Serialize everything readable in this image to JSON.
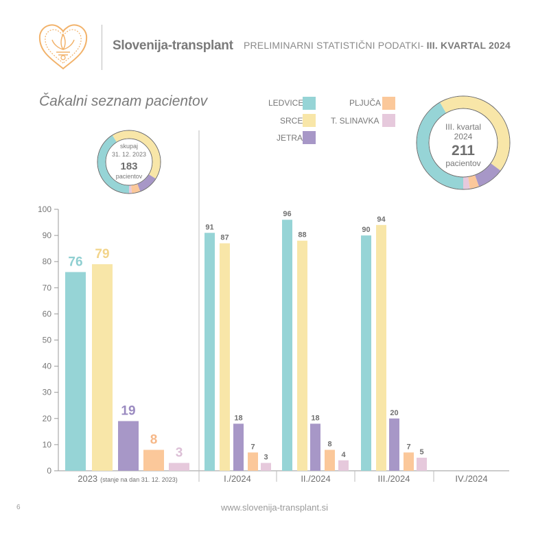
{
  "header": {
    "org_name": "Slovenija-transplant",
    "title_prefix": "PRELIMINARNI STATISTIČNI PODATKI- ",
    "title_highlight": "III. KVARTAL 2024"
  },
  "subtitle": "Čakalni seznam pacientov",
  "legend": [
    {
      "label": "LEDVICE",
      "color": "#96d4d6"
    },
    {
      "label": "SRCE",
      "color": "#f8e6a8"
    },
    {
      "label": "JETRA",
      "color": "#a797c7"
    },
    {
      "label": "PLJUČA",
      "color": "#fbc89a"
    },
    {
      "label": "T. SLINAVKA",
      "color": "#e6c9dc"
    }
  ],
  "donut_2023": {
    "line1": "skupaj",
    "line2": "31. 12. 2023",
    "total": "183",
    "unit": "pacientov",
    "values": [
      76,
      79,
      19,
      8,
      3
    ]
  },
  "donut_q3": {
    "line1": "III. kvartal",
    "line2": "2024",
    "total": "211",
    "unit": "pacientov",
    "values": [
      90,
      94,
      20,
      7,
      5
    ]
  },
  "chart_data": {
    "type": "bar",
    "ylim": [
      0,
      100
    ],
    "yticks": [
      0,
      10,
      20,
      30,
      40,
      50,
      60,
      70,
      80,
      90,
      100
    ],
    "series_names": [
      "LEDVICE",
      "SRCE",
      "JETRA",
      "PLJUČA",
      "T. SLINAVKA"
    ],
    "colors": [
      "#96d4d6",
      "#f8e6a8",
      "#a797c7",
      "#fbc89a",
      "#e6c9dc"
    ],
    "label_colors": [
      "#8fcfd1",
      "#f2d48a",
      "#9a8ac0",
      "#f6b888",
      "#dcbfd6"
    ],
    "groups": [
      {
        "label": "2023",
        "sublabel": "(stanje na dan 31. 12. 2023)",
        "values": [
          76,
          79,
          19,
          8,
          3
        ]
      },
      {
        "label": "I./2024",
        "sublabel": "",
        "values": [
          91,
          87,
          18,
          7,
          3
        ]
      },
      {
        "label": "II./2024",
        "sublabel": "",
        "values": [
          96,
          88,
          18,
          8,
          4
        ]
      },
      {
        "label": "III./2024",
        "sublabel": "",
        "values": [
          90,
          94,
          20,
          7,
          5
        ]
      },
      {
        "label": "IV./2024",
        "sublabel": "",
        "values": []
      }
    ]
  },
  "footer": {
    "url": "www.slovenija-transplant.si",
    "page": "6"
  }
}
